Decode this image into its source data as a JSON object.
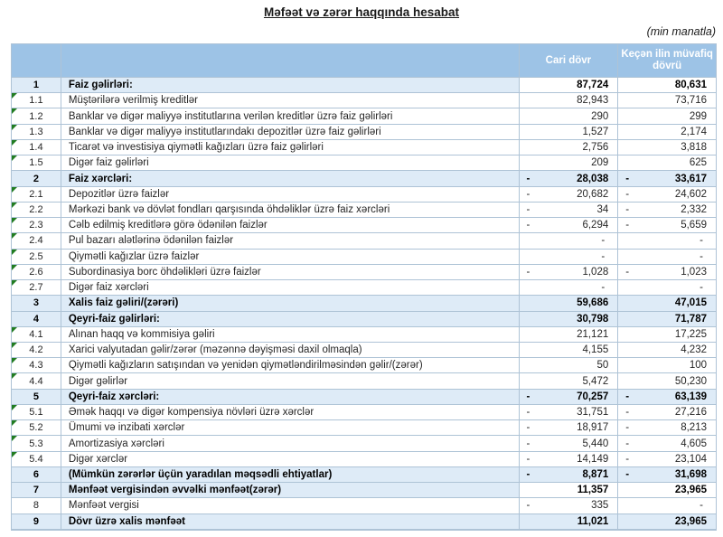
{
  "title": "Məfəət və zərər haqqında hesabat",
  "unit_note": "(min manatla)",
  "colors": {
    "header_bg": "#9dc3e6",
    "section_row_bg": "#deebf7",
    "border": "#aec3d6",
    "comment_marker_green": "#217c21"
  },
  "table": {
    "columns": {
      "current": "Cari dövr",
      "previous": "Keçən ilin müvafiq dövrü"
    },
    "rows": [
      {
        "no": "1",
        "label": "Faiz gəlirləri:",
        "cur": "87,724",
        "cur_neg": false,
        "prev": "80,631",
        "prev_neg": false,
        "section": true,
        "tint_values": false,
        "marker": false
      },
      {
        "no": "1.1",
        "label": "Müştərilərə verilmiş kreditlər",
        "cur": "82,943",
        "cur_neg": false,
        "prev": "73,716",
        "prev_neg": false,
        "section": false,
        "tint_values": false,
        "marker": true
      },
      {
        "no": "1.2",
        "label": "Banklar və digər maliyyə institutlarına verilən kreditlər üzrə faiz gəlirləri",
        "cur": "290",
        "cur_neg": false,
        "prev": "299",
        "prev_neg": false,
        "section": false,
        "tint_values": false,
        "marker": true
      },
      {
        "no": "1.3",
        "label": "Banklar və digər maliyyə institutlarındakı depozitlər üzrə faiz gəlirləri",
        "cur": "1,527",
        "cur_neg": false,
        "prev": "2,174",
        "prev_neg": false,
        "section": false,
        "tint_values": false,
        "marker": true
      },
      {
        "no": "1.4",
        "label": "Ticarət və investisiya qiymətli kağızları üzrə faiz gəlirləri",
        "cur": "2,756",
        "cur_neg": false,
        "prev": "3,818",
        "prev_neg": false,
        "section": false,
        "tint_values": false,
        "marker": true
      },
      {
        "no": "1.5",
        "label": "Digər faiz gəlirləri",
        "cur": "209",
        "cur_neg": false,
        "prev": "625",
        "prev_neg": false,
        "section": false,
        "tint_values": false,
        "marker": true
      },
      {
        "no": "2",
        "label": "Faiz xərcləri:",
        "cur": "28,038",
        "cur_neg": true,
        "prev": "33,617",
        "prev_neg": true,
        "section": true,
        "tint_values": true,
        "marker": false
      },
      {
        "no": "2.1",
        "label": "Depozitlər üzrə faizlər",
        "cur": "20,682",
        "cur_neg": true,
        "prev": "24,602",
        "prev_neg": true,
        "section": false,
        "tint_values": false,
        "marker": true
      },
      {
        "no": "2.2",
        "label": "Mərkəzi bank və dövlət fondları qarşısında öhdəliklər üzrə faiz xərcləri",
        "cur": "34",
        "cur_neg": true,
        "prev": "2,332",
        "prev_neg": true,
        "section": false,
        "tint_values": false,
        "marker": true
      },
      {
        "no": "2.3",
        "label": "Cəlb edilmiş kreditlərə görə ödənilən faizlər",
        "cur": "6,294",
        "cur_neg": true,
        "prev": "5,659",
        "prev_neg": true,
        "section": false,
        "tint_values": false,
        "marker": true
      },
      {
        "no": "2.4",
        "label": "Pul bazarı alətlərinə ödənilən faizlər",
        "cur": "-",
        "cur_neg": false,
        "prev": "-",
        "prev_neg": false,
        "section": false,
        "tint_values": false,
        "marker": true
      },
      {
        "no": "2.5",
        "label": "Qiymətli kağızlar üzrə faizlər",
        "cur": "-",
        "cur_neg": false,
        "prev": "-",
        "prev_neg": false,
        "section": false,
        "tint_values": false,
        "marker": true
      },
      {
        "no": "2.6",
        "label": "Subordinasiya borc öhdəlikləri üzrə faizlər",
        "cur": "1,028",
        "cur_neg": true,
        "prev": "1,023",
        "prev_neg": true,
        "section": false,
        "tint_values": false,
        "marker": true
      },
      {
        "no": "2.7",
        "label": "Digər faiz xərcləri",
        "cur": "-",
        "cur_neg": false,
        "prev": "-",
        "prev_neg": false,
        "section": false,
        "tint_values": false,
        "marker": true
      },
      {
        "no": "3",
        "label": "Xalis faiz gəliri/(zərəri)",
        "cur": "59,686",
        "cur_neg": false,
        "prev": "47,015",
        "prev_neg": false,
        "section": true,
        "tint_values": true,
        "marker": false
      },
      {
        "no": "4",
        "label": "Qeyri-faiz gəlirləri:",
        "cur": "30,798",
        "cur_neg": false,
        "prev": "71,787",
        "prev_neg": false,
        "section": true,
        "tint_values": true,
        "marker": false
      },
      {
        "no": "4.1",
        "label": "Alınan haqq və kommisiya gəliri",
        "cur": "21,121",
        "cur_neg": false,
        "prev": "17,225",
        "prev_neg": false,
        "section": false,
        "tint_values": false,
        "marker": true
      },
      {
        "no": "4.2",
        "label": "Xarici valyutadan gəlir/zərər (məzənnə dəyişməsi daxil olmaqla)",
        "cur": "4,155",
        "cur_neg": false,
        "prev": "4,232",
        "prev_neg": false,
        "section": false,
        "tint_values": false,
        "marker": true
      },
      {
        "no": "4.3",
        "label": "Qiymətli kağızların satışından və yenidən qiymətləndirilməsindən gəlir/(zərər)",
        "cur": "50",
        "cur_neg": false,
        "prev": "100",
        "prev_neg": false,
        "section": false,
        "tint_values": false,
        "marker": true
      },
      {
        "no": "4.4",
        "label": "Digər gəlirlər",
        "cur": "5,472",
        "cur_neg": false,
        "prev": "50,230",
        "prev_neg": false,
        "section": false,
        "tint_values": false,
        "marker": true
      },
      {
        "no": "5",
        "label": "Qeyri-faiz xərcləri:",
        "cur": "70,257",
        "cur_neg": true,
        "prev": "63,139",
        "prev_neg": true,
        "section": true,
        "tint_values": true,
        "marker": false
      },
      {
        "no": "5.1",
        "label": "Əmək haqqı və digər kompensiya növləri üzrə xərclər",
        "cur": "31,751",
        "cur_neg": true,
        "prev": "27,216",
        "prev_neg": true,
        "section": false,
        "tint_values": false,
        "marker": true
      },
      {
        "no": "5.2",
        "label": "Ümumi və inzibati xərclər",
        "cur": "18,917",
        "cur_neg": true,
        "prev": "8,213",
        "prev_neg": true,
        "section": false,
        "tint_values": false,
        "marker": true
      },
      {
        "no": "5.3",
        "label": "Amortizasiya xərcləri",
        "cur": "5,440",
        "cur_neg": true,
        "prev": "4,605",
        "prev_neg": true,
        "section": false,
        "tint_values": false,
        "marker": true
      },
      {
        "no": "5.4",
        "label": "Digər xərclər",
        "cur": "14,149",
        "cur_neg": true,
        "prev": "23,104",
        "prev_neg": true,
        "section": false,
        "tint_values": false,
        "marker": true
      },
      {
        "no": "6",
        "label": "(Mümkün zərərlər üçün yaradılan məqsədli ehtiyatlar)",
        "cur": "8,871",
        "cur_neg": true,
        "prev": "31,698",
        "prev_neg": true,
        "section": true,
        "tint_values": true,
        "marker": false
      },
      {
        "no": "7",
        "label": "Mənfəət vergisindən əvvəlki mənfəət(zərər)",
        "cur": "11,357",
        "cur_neg": false,
        "prev": "23,965",
        "prev_neg": false,
        "section": true,
        "tint_values": false,
        "marker": false
      },
      {
        "no": "8",
        "label": "Mənfəət vergisi",
        "cur": "335",
        "cur_neg": true,
        "prev": "-",
        "prev_neg": false,
        "section": false,
        "tint_values": false,
        "marker": false
      },
      {
        "no": "9",
        "label": "Dövr üzrə xalis mənfəət",
        "cur": "11,021",
        "cur_neg": false,
        "prev": "23,965",
        "prev_neg": false,
        "section": true,
        "tint_values": true,
        "marker": false
      }
    ]
  }
}
